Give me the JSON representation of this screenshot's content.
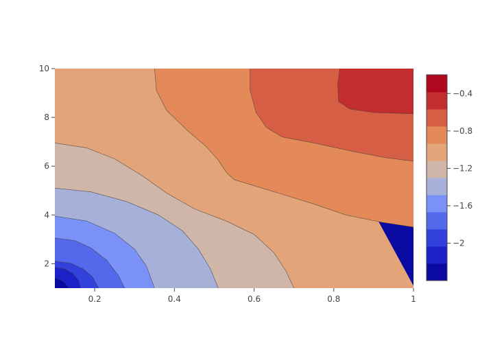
{
  "chart_data": {
    "type": "contour",
    "title": "",
    "xlabel": "",
    "ylabel": "",
    "xlim": [
      0.1,
      1.0
    ],
    "ylim": [
      1,
      10
    ],
    "x_ticks": [
      {
        "value": 0.2,
        "label": "0.2"
      },
      {
        "value": 0.4,
        "label": "0.4"
      },
      {
        "value": 0.6,
        "label": "0.6"
      },
      {
        "value": 0.8,
        "label": "0.8"
      },
      {
        "value": 1.0,
        "label": "1"
      }
    ],
    "y_ticks": [
      {
        "value": 2,
        "label": "2"
      },
      {
        "value": 4,
        "label": "4"
      },
      {
        "value": 6,
        "label": "6"
      },
      {
        "value": 8,
        "label": "8"
      },
      {
        "value": 10,
        "label": "10"
      }
    ],
    "colorscale": [
      "#0a0aa0",
      "#1b20c8",
      "#3240dc",
      "#5468ec",
      "#7a92f8",
      "#a6b0d8",
      "#cfb6a8",
      "#e2a478",
      "#e48a58",
      "#d55e44",
      "#c22e30",
      "#b0081e"
    ],
    "colorbar": {
      "range": [
        -2.4,
        -0.2
      ],
      "ticks": [
        {
          "value": -2.0,
          "label": "−2"
        },
        {
          "value": -1.6,
          "label": "−1.6"
        },
        {
          "value": -1.2,
          "label": "−1.2"
        },
        {
          "value": -0.8,
          "label": "−0.8"
        },
        {
          "value": -0.4,
          "label": "−0.4"
        }
      ]
    },
    "contours": [
      {
        "level": -2.2,
        "fill": "#1b20c8",
        "points": [
          [
            0.1,
            1.42
          ],
          [
            0.112,
            1.35
          ],
          [
            0.125,
            1.22
          ],
          [
            0.135,
            1.0
          ]
        ]
      },
      {
        "level": -2.0,
        "fill": "#3240dc",
        "points": [
          [
            0.1,
            1.85
          ],
          [
            0.125,
            1.78
          ],
          [
            0.145,
            1.6
          ],
          [
            0.16,
            1.3
          ],
          [
            0.165,
            1.0
          ]
        ]
      },
      {
        "level": -1.8,
        "fill": "#5468ec",
        "points": [
          [
            0.1,
            2.1
          ],
          [
            0.14,
            2.02
          ],
          [
            0.17,
            1.8
          ],
          [
            0.195,
            1.45
          ],
          [
            0.21,
            1.0
          ]
        ]
      },
      {
        "level": -1.6,
        "fill": "#7a92f8",
        "points": [
          [
            0.1,
            3.05
          ],
          [
            0.15,
            2.95
          ],
          [
            0.19,
            2.65
          ],
          [
            0.23,
            2.15
          ],
          [
            0.26,
            1.5
          ],
          [
            0.275,
            1.0
          ]
        ]
      },
      {
        "level": -1.4,
        "fill": "#a6b0d8",
        "points": [
          [
            0.1,
            3.95
          ],
          [
            0.18,
            3.75
          ],
          [
            0.25,
            3.25
          ],
          [
            0.3,
            2.6
          ],
          [
            0.33,
            1.9
          ],
          [
            0.35,
            1.0
          ]
        ]
      },
      {
        "level": -1.2,
        "fill": "#cfb6a8",
        "points": [
          [
            0.1,
            5.1
          ],
          [
            0.19,
            4.95
          ],
          [
            0.28,
            4.55
          ],
          [
            0.36,
            4.0
          ],
          [
            0.42,
            3.35
          ],
          [
            0.46,
            2.6
          ],
          [
            0.49,
            1.8
          ],
          [
            0.51,
            1.0
          ]
        ]
      },
      {
        "level": -1.0,
        "fill": "#e2a478",
        "points": [
          [
            0.1,
            6.95
          ],
          [
            0.18,
            6.75
          ],
          [
            0.25,
            6.3
          ],
          [
            0.32,
            5.6
          ],
          [
            0.38,
            4.9
          ],
          [
            0.45,
            4.25
          ],
          [
            0.53,
            3.75
          ],
          [
            0.6,
            3.2
          ],
          [
            0.65,
            2.45
          ],
          [
            0.68,
            1.7
          ],
          [
            0.7,
            1.0
          ]
        ]
      },
      {
        "level": -0.8,
        "fill": "#e48a58",
        "points": [
          [
            0.35,
            10.0
          ],
          [
            0.355,
            9.1
          ],
          [
            0.38,
            8.3
          ],
          [
            0.43,
            7.5
          ],
          [
            0.48,
            6.8
          ],
          [
            0.51,
            6.25
          ],
          [
            0.53,
            5.75
          ],
          [
            0.55,
            5.45
          ],
          [
            0.6,
            5.2
          ],
          [
            0.67,
            4.85
          ],
          [
            0.75,
            4.45
          ],
          [
            0.83,
            4.0
          ],
          [
            0.92,
            3.7
          ],
          [
            1.0,
            3.5
          ]
        ]
      },
      {
        "level": -0.6,
        "fill": "#d55e44",
        "points": [
          [
            0.59,
            10.0
          ],
          [
            0.59,
            9.1
          ],
          [
            0.605,
            8.2
          ],
          [
            0.63,
            7.6
          ],
          [
            0.67,
            7.2
          ],
          [
            0.75,
            6.95
          ],
          [
            0.85,
            6.6
          ],
          [
            0.93,
            6.35
          ],
          [
            1.0,
            6.2
          ]
        ]
      },
      {
        "level": -0.4,
        "fill": "#c22e30",
        "points": [
          [
            0.815,
            10.0
          ],
          [
            0.81,
            9.35
          ],
          [
            0.812,
            8.65
          ],
          [
            0.84,
            8.35
          ],
          [
            0.9,
            8.2
          ],
          [
            1.0,
            8.15
          ]
        ]
      }
    ]
  }
}
